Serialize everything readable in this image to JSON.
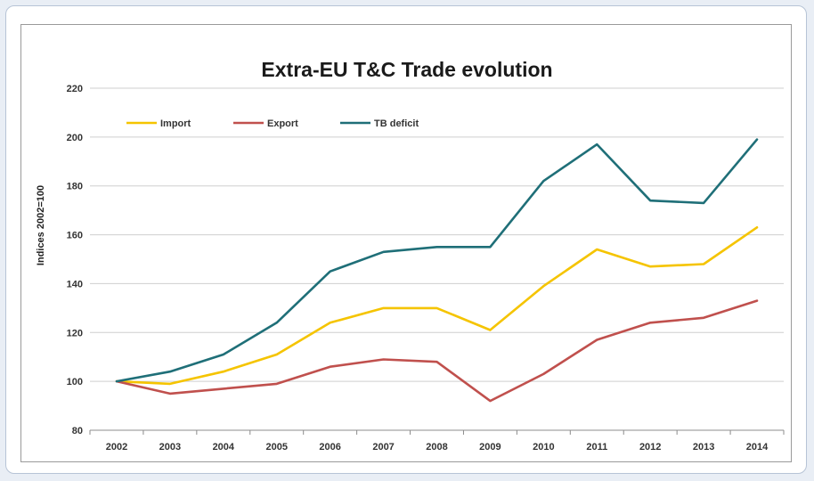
{
  "chart_data": {
    "type": "line",
    "title": "Extra-EU T&C Trade evolution",
    "xlabel": "",
    "ylabel": "Indices 2002=100",
    "ylim": [
      80,
      220
    ],
    "yticks": [
      80,
      100,
      120,
      140,
      160,
      180,
      200,
      220
    ],
    "grid": true,
    "legend_position": "top-left",
    "categories": [
      "2002",
      "2003",
      "2004",
      "2005",
      "2006",
      "2007",
      "2008",
      "2009",
      "2010",
      "2011",
      "2012",
      "2013",
      "2014"
    ],
    "series": [
      {
        "name": "Import",
        "color": "#f5c400",
        "values": [
          100,
          99,
          104,
          111,
          124,
          130,
          130,
          121,
          139,
          154,
          147,
          148,
          163
        ]
      },
      {
        "name": "Export",
        "color": "#c0504d",
        "values": [
          100,
          95,
          97,
          99,
          106,
          109,
          108,
          92,
          103,
          117,
          124,
          126,
          133
        ]
      },
      {
        "name": "TB deficit",
        "color": "#1f6f78",
        "values": [
          100,
          104,
          111,
          124,
          145,
          153,
          155,
          155,
          182,
          197,
          174,
          173,
          199
        ]
      }
    ]
  }
}
